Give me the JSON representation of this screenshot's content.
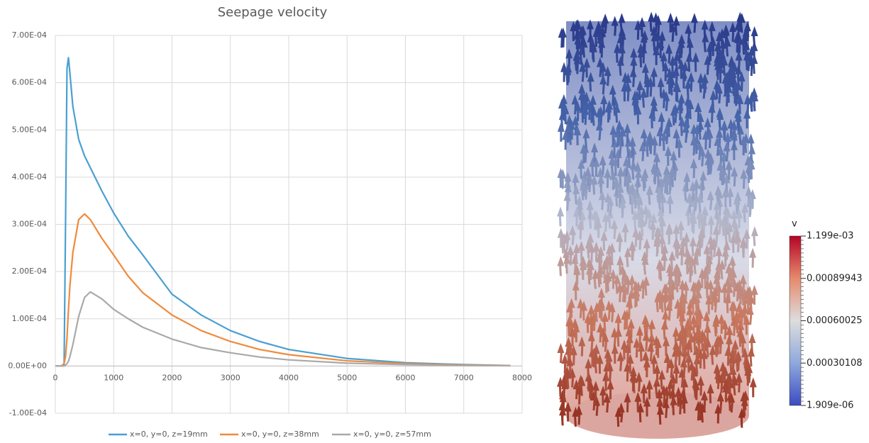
{
  "chart_data": {
    "type": "line",
    "title": "Seepage velocity",
    "x": [
      0,
      100,
      150,
      175,
      200,
      225,
      250,
      300,
      400,
      500,
      600,
      800,
      1000,
      1250,
      1500,
      2000,
      2500,
      3000,
      3500,
      4000,
      5000,
      6000,
      7000,
      7800
    ],
    "series": [
      {
        "name": "x=0, y=0, z=19mm",
        "color": "#4a9fd1",
        "values": [
          0,
          0,
          0,
          0.0003,
          0.00063,
          0.000653,
          0.00062,
          0.00055,
          0.00048,
          0.000445,
          0.00042,
          0.00037,
          0.000324,
          0.000275,
          0.000235,
          0.000152,
          0.000108,
          7.5e-05,
          5.2e-05,
          3.5e-05,
          1.6e-05,
          7e-06,
          3e-06,
          1e-06
        ]
      },
      {
        "name": "x=0, y=0, z=38mm",
        "color": "#f08a3c",
        "values": [
          0,
          0,
          5e-06,
          2e-05,
          6e-05,
          0.00012,
          0.00017,
          0.00024,
          0.00031,
          0.000322,
          0.00031,
          0.00027,
          0.000235,
          0.00019,
          0.000155,
          0.000108,
          7.5e-05,
          5.2e-05,
          3.5e-05,
          2.4e-05,
          1.1e-05,
          5e-06,
          2e-06,
          1e-06
        ]
      },
      {
        "name": "x=0, y=0, z=57mm",
        "color": "#a9a9a9",
        "values": [
          0,
          0,
          0,
          2e-06,
          5e-06,
          1e-05,
          2e-05,
          4.5e-05,
          0.000105,
          0.000145,
          0.000157,
          0.000142,
          0.00012,
          0.0001,
          8.2e-05,
          5.7e-05,
          3.9e-05,
          2.8e-05,
          1.9e-05,
          1.3e-05,
          6e-06,
          3e-06,
          1e-06,
          5e-07
        ]
      }
    ],
    "xlim": [
      0,
      8000
    ],
    "xticks": [
      0,
      1000,
      2000,
      3000,
      4000,
      5000,
      6000,
      7000,
      8000
    ],
    "ylim": [
      -0.0001,
      0.0007
    ],
    "yticks": [
      {
        "value": -0.0001,
        "label": "-1.00E-04"
      },
      {
        "value": 0,
        "label": "0.00E+00"
      },
      {
        "value": 0.0001,
        "label": "1.00E-04"
      },
      {
        "value": 0.0002,
        "label": "2.00E-04"
      },
      {
        "value": 0.0003,
        "label": "3.00E-04"
      },
      {
        "value": 0.0004,
        "label": "4.00E-04"
      },
      {
        "value": 0.0005,
        "label": "5.00E-04"
      },
      {
        "value": 0.0006,
        "label": "6.00E-04"
      },
      {
        "value": 0.0007,
        "label": "7.00E-04"
      }
    ],
    "grid": true,
    "legend": "bottom"
  },
  "colorbar": {
    "title": "v",
    "labels": [
      "1.199e-03",
      "0.00089943",
      "0.00060025",
      "0.00030108",
      "1.909e-06"
    ]
  }
}
